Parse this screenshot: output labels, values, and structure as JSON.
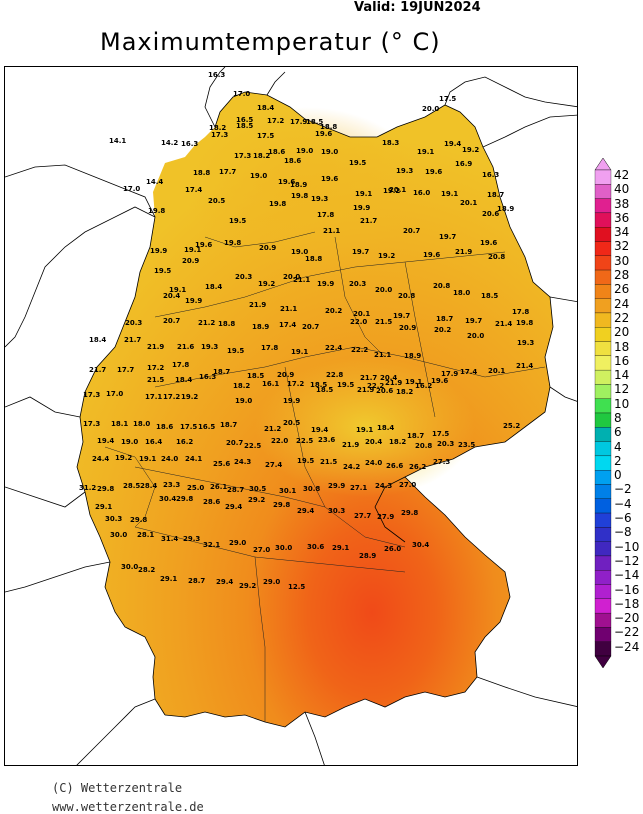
{
  "valid_label": "Valid:  19JUN2024",
  "title": "Maximumtemperatur (° C)",
  "copyright": "(C) Wetterzentrale",
  "website": "www.wetterzentrale.de",
  "legend": {
    "ticks": [
      "42",
      "40",
      "38",
      "36",
      "34",
      "32",
      "30",
      "28",
      "26",
      "24",
      "22",
      "20",
      "18",
      "16",
      "14",
      "12",
      "10",
      "8",
      "6",
      "4",
      "2",
      "0",
      "−2",
      "−4",
      "−6",
      "−8",
      "−10",
      "−12",
      "−14",
      "−16",
      "−18",
      "−20",
      "−22",
      "−24"
    ],
    "colors": [
      "#f0a0f0",
      "#e060c8",
      "#e02090",
      "#e0105a",
      "#e01020",
      "#f02818",
      "#f04418",
      "#f06818",
      "#f08418",
      "#f0a020",
      "#f0b820",
      "#f0d020",
      "#f0e040",
      "#f0f060",
      "#d0f060",
      "#a0f060",
      "#40e050",
      "#20c840",
      "#00b0b0",
      "#00c8e0",
      "#00d8f0",
      "#00a0f0",
      "#0080e8",
      "#0060e0",
      "#2040d8",
      "#3030c8",
      "#4028c0",
      "#7020c0",
      "#9020c8",
      "#b020d0",
      "#d020d0",
      "#a01090",
      "#700070",
      "#400040"
    ],
    "arrow_top_color": "#f0a0f0",
    "arrow_bottom_color": "#400040"
  },
  "values": [
    "16.3",
    "17.0",
    "18.4",
    "17.5",
    "20.0",
    "16.5",
    "17.2",
    "18.2",
    "18.5",
    "17.3",
    "17.9",
    "17.5",
    "18.5",
    "18.8",
    "19.6",
    "18.3",
    "19.1",
    "19.4",
    "19.2",
    "14.1",
    "14.2",
    "16.3",
    "17.3",
    "18.2",
    "18.6",
    "19.0",
    "18.6",
    "19.0",
    "19.5",
    "19.3",
    "19.6",
    "16.9",
    "16.3",
    "17.0",
    "14.4",
    "17.4",
    "18.8",
    "17.7",
    "19.0",
    "19.6",
    "18.9",
    "19.6",
    "19.1",
    "19.2",
    "16.0",
    "19.1",
    "18.7",
    "20.5",
    "19.8",
    "19.8",
    "19.3",
    "17.8",
    "19.9",
    "20.1",
    "20.1",
    "20.6",
    "18.9",
    "19.8",
    "19.5",
    "21.1",
    "21.7",
    "20.7",
    "19.7",
    "19.6",
    "19.6",
    "19.8",
    "20.9",
    "19.0",
    "18.8",
    "19.7",
    "19.2",
    "19.6",
    "21.9",
    "20.8",
    "19.9",
    "19.1",
    "20.9",
    "20.3",
    "20.0",
    "21.1",
    "19.5",
    "19.1",
    "18.4",
    "19.2",
    "19.9",
    "20.3",
    "20.0",
    "20.8",
    "20.8",
    "18.0",
    "18.5",
    "17.8",
    "20.4",
    "19.9",
    "21.9",
    "21.1",
    "20.2",
    "20.1",
    "19.7",
    "18.7",
    "19.7",
    "21.4",
    "20.3",
    "20.7",
    "21.2",
    "18.8",
    "18.9",
    "17.4",
    "20.7",
    "22.0",
    "21.5",
    "20.9",
    "20.2",
    "20.0",
    "19.8",
    "19.3",
    "18.4",
    "21.7",
    "21.9",
    "21.6",
    "19.3",
    "19.5",
    "17.8",
    "19.1",
    "22.4",
    "22.2",
    "21.1",
    "18.9",
    "21.7",
    "17.7",
    "17.2",
    "17.8",
    "18.7",
    "18.5",
    "20.9",
    "22.8",
    "21.7",
    "20.4",
    "17.9",
    "17.4",
    "20.1",
    "21.4",
    "21.5",
    "18.4",
    "16.3",
    "18.2",
    "16.1",
    "17.2",
    "18.5",
    "19.5",
    "22.2",
    "21.9",
    "19.1",
    "19.6",
    "17.3",
    "17.0",
    "17.1",
    "17.2",
    "19.2",
    "19.0",
    "19.9",
    "18.5",
    "21.9",
    "20.6",
    "18.2",
    "16.2",
    "17.3",
    "18.1",
    "18.0",
    "18.6",
    "17.5",
    "16.5",
    "18.7",
    "21.2",
    "20.5",
    "19.4",
    "19.1",
    "18.4",
    "18.7",
    "17.5",
    "19.4",
    "19.0",
    "16.4",
    "16.2",
    "20.7",
    "22.5",
    "22.0",
    "22.5",
    "23.6",
    "21.9",
    "20.4",
    "18.2",
    "20.8",
    "20.3",
    "23.5",
    "25.2",
    "24.4",
    "19.2",
    "19.1",
    "24.0",
    "24.1",
    "25.6",
    "24.3",
    "27.4",
    "19.5",
    "21.5",
    "24.2",
    "24.0",
    "26.6",
    "26.2",
    "27.3",
    "31.2",
    "29.8",
    "28.5",
    "28.4",
    "23.3",
    "25.0",
    "26.1",
    "28.7",
    "30.5",
    "30.1",
    "30.8",
    "29.9",
    "27.1",
    "24.3",
    "27.0",
    "29.1",
    "30.3",
    "29.8",
    "30.4",
    "29.8",
    "28.6",
    "29.4",
    "29.2",
    "29.8",
    "29.4",
    "30.3",
    "27.7",
    "27.9",
    "29.8",
    "30.0",
    "28.1",
    "31.4",
    "29.3",
    "32.1",
    "29.0",
    "27.0",
    "30.0",
    "30.6",
    "29.1",
    "28.9",
    "26.0",
    "30.4",
    "30.0",
    "28.2",
    "29.1",
    "28.7",
    "29.4",
    "29.2",
    "29.0",
    "12.5"
  ]
}
